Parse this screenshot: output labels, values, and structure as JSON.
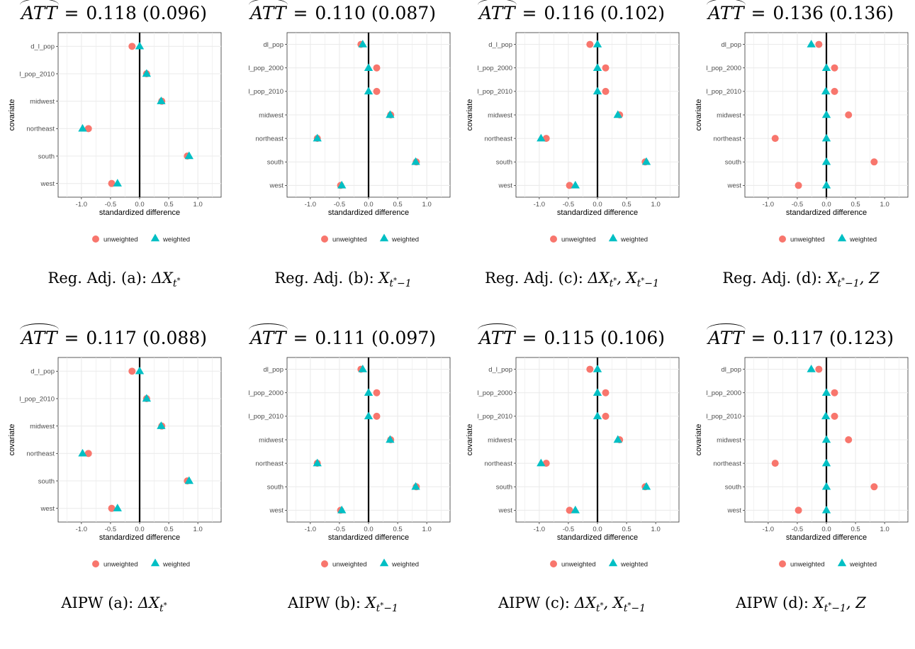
{
  "colors": {
    "unweighted": "#F8766D",
    "weighted": "#00BFC4",
    "grid": "#EBEBEB",
    "zero_line": "#000000"
  },
  "legend": {
    "unweighted": "unweighted",
    "weighted": "weighted"
  },
  "chart_data": [
    {
      "type": "scatter",
      "title_prefix": "ATT",
      "estimate": "0.118",
      "se": "(0.096)",
      "caption": {
        "text": "Reg. Adj. (a):",
        "math": "ΔX",
        "sub": "t",
        "sup": "*",
        "tail": ""
      },
      "xlabel": "standardized difference",
      "ylabel": "covariate",
      "xlim": [
        -1.4,
        1.4
      ],
      "xticks": [
        "-1.0",
        "-0.5",
        "0.0",
        "0.5",
        "1.0"
      ],
      "xtick_values": [
        -1.0,
        -0.5,
        0.0,
        0.5,
        1.0
      ],
      "covariates": [
        "d_l_pop",
        "l_pop_2010",
        "midwest",
        "northeast",
        "south",
        "west"
      ],
      "series": [
        {
          "name": "unweighted",
          "values": [
            -0.13,
            0.12,
            0.38,
            -0.88,
            0.82,
            -0.48
          ]
        },
        {
          "name": "weighted",
          "values": [
            0.0,
            0.12,
            0.37,
            -0.98,
            0.85,
            -0.38
          ]
        }
      ]
    },
    {
      "type": "scatter",
      "title_prefix": "ATT",
      "estimate": "0.110",
      "se": "(0.087)",
      "caption": {
        "text": "Reg. Adj. (b):",
        "math": "X",
        "sub": "t",
        "sup": "*",
        "tail": "−1"
      },
      "xlabel": "standardized difference",
      "ylabel": "",
      "xlim": [
        -1.4,
        1.4
      ],
      "xticks": [
        "-1.0",
        "-0.5",
        "0.0",
        "0.5",
        "1.0"
      ],
      "xtick_values": [
        -1.0,
        -0.5,
        0.0,
        0.5,
        1.0
      ],
      "covariates": [
        "dl_pop",
        "l_pop_2000",
        "l_pop_2010",
        "midwest",
        "northeast",
        "south",
        "west"
      ],
      "series": [
        {
          "name": "unweighted",
          "values": [
            -0.13,
            0.14,
            0.14,
            0.38,
            -0.88,
            0.82,
            -0.48
          ]
        },
        {
          "name": "weighted",
          "values": [
            -0.1,
            0.0,
            0.0,
            0.37,
            -0.88,
            0.81,
            -0.46
          ]
        }
      ]
    },
    {
      "type": "scatter",
      "title_prefix": "ATT",
      "estimate": "0.116",
      "se": "(0.102)",
      "caption": {
        "text": "Reg. Adj. (c):",
        "math": "ΔX",
        "sub": "t",
        "sup": "*",
        "tail": ", X",
        "sub2": "t",
        "sup2": "*",
        "tail2": "−1"
      },
      "xlabel": "standardized difference",
      "ylabel": "covariate",
      "xlim": [
        -1.4,
        1.4
      ],
      "xticks": [
        "-1.0",
        "-0.5",
        "0.0",
        "0.5",
        "1.0"
      ],
      "xtick_values": [
        -1.0,
        -0.5,
        0.0,
        0.5,
        1.0
      ],
      "covariates": [
        "d_l_pop",
        "l_pop_2000",
        "l_pop_2010",
        "midwest",
        "northeast",
        "south",
        "west"
      ],
      "series": [
        {
          "name": "unweighted",
          "values": [
            -0.13,
            0.14,
            0.14,
            0.38,
            -0.88,
            0.82,
            -0.48
          ]
        },
        {
          "name": "weighted",
          "values": [
            0.0,
            0.0,
            0.0,
            0.35,
            -0.97,
            0.84,
            -0.38
          ]
        }
      ]
    },
    {
      "type": "scatter",
      "title_prefix": "ATT",
      "estimate": "0.136",
      "se": "(0.136)",
      "caption": {
        "text": "Reg. Adj. (d):",
        "math": "X",
        "sub": "t",
        "sup": "*",
        "tail": "−1",
        "tail3": ", Z"
      },
      "xlabel": "standardized difference",
      "ylabel": "covariate",
      "xlim": [
        -1.4,
        1.4
      ],
      "xticks": [
        "-1.0",
        "-0.5",
        "0.0",
        "0.5",
        "1.0"
      ],
      "xtick_values": [
        -1.0,
        -0.5,
        0.0,
        0.5,
        1.0
      ],
      "covariates": [
        "dl_pop",
        "l_pop_2000",
        "l_pop_2010",
        "midwest",
        "northeast",
        "south",
        "west"
      ],
      "series": [
        {
          "name": "unweighted",
          "values": [
            -0.13,
            0.14,
            0.14,
            0.38,
            -0.88,
            0.82,
            -0.48
          ]
        },
        {
          "name": "weighted",
          "values": [
            -0.26,
            0.0,
            -0.01,
            0.0,
            0.0,
            0.0,
            0.0
          ]
        }
      ]
    },
    {
      "type": "scatter",
      "title_prefix": "ATT",
      "estimate": "0.117",
      "se": "(0.088)",
      "caption": {
        "text": "AIPW (a):",
        "math": "ΔX",
        "sub": "t",
        "sup": "*",
        "tail": ""
      },
      "xlabel": "standardized difference",
      "ylabel": "covariate",
      "xlim": [
        -1.4,
        1.4
      ],
      "xticks": [
        "-1.0",
        "-0.5",
        "0.0",
        "0.5",
        "1.0"
      ],
      "xtick_values": [
        -1.0,
        -0.5,
        0.0,
        0.5,
        1.0
      ],
      "covariates": [
        "d_l_pop",
        "l_pop_2010",
        "midwest",
        "northeast",
        "south",
        "west"
      ],
      "series": [
        {
          "name": "unweighted",
          "values": [
            -0.13,
            0.12,
            0.38,
            -0.88,
            0.82,
            -0.48
          ]
        },
        {
          "name": "weighted",
          "values": [
            0.0,
            0.12,
            0.37,
            -0.98,
            0.85,
            -0.38
          ]
        }
      ]
    },
    {
      "type": "scatter",
      "title_prefix": "ATT",
      "estimate": "0.111",
      "se": "(0.097)",
      "caption": {
        "text": "AIPW (b):",
        "math": "X",
        "sub": "t",
        "sup": "*",
        "tail": "−1"
      },
      "xlabel": "standardized difference",
      "ylabel": "",
      "xlim": [
        -1.4,
        1.4
      ],
      "xticks": [
        "-1.0",
        "-0.5",
        "0.0",
        "0.5",
        "1.0"
      ],
      "xtick_values": [
        -1.0,
        -0.5,
        0.0,
        0.5,
        1.0
      ],
      "covariates": [
        "dl_pop",
        "l_pop_2000",
        "l_pop_2010",
        "midwest",
        "northeast",
        "south",
        "west"
      ],
      "series": [
        {
          "name": "unweighted",
          "values": [
            -0.13,
            0.14,
            0.14,
            0.38,
            -0.88,
            0.82,
            -0.48
          ]
        },
        {
          "name": "weighted",
          "values": [
            -0.1,
            0.0,
            0.0,
            0.37,
            -0.88,
            0.81,
            -0.46
          ]
        }
      ]
    },
    {
      "type": "scatter",
      "title_prefix": "ATT",
      "estimate": "0.115",
      "se": "(0.106)",
      "caption": {
        "text": "AIPW (c):",
        "math": "ΔX",
        "sub": "t",
        "sup": "*",
        "tail": ", X",
        "sub2": "t",
        "sup2": "*",
        "tail2": "−1"
      },
      "xlabel": "standardized difference",
      "ylabel": "covariate",
      "xlim": [
        -1.4,
        1.4
      ],
      "xticks": [
        "-1.0",
        "-0.5",
        "0.0",
        "0.5",
        "1.0"
      ],
      "xtick_values": [
        -1.0,
        -0.5,
        0.0,
        0.5,
        1.0
      ],
      "covariates": [
        "d_l_pop",
        "l_pop_2000",
        "l_pop_2010",
        "midwest",
        "northeast",
        "south",
        "west"
      ],
      "series": [
        {
          "name": "unweighted",
          "values": [
            -0.13,
            0.14,
            0.14,
            0.38,
            -0.88,
            0.82,
            -0.48
          ]
        },
        {
          "name": "weighted",
          "values": [
            0.0,
            0.0,
            0.0,
            0.35,
            -0.97,
            0.84,
            -0.38
          ]
        }
      ]
    },
    {
      "type": "scatter",
      "title_prefix": "ATT",
      "estimate": "0.117",
      "se": "(0.123)",
      "caption": {
        "text": "AIPW (d):",
        "math": "X",
        "sub": "t",
        "sup": "*",
        "tail": "−1",
        "tail3": ", Z"
      },
      "xlabel": "standardized difference",
      "ylabel": "covariate",
      "xlim": [
        -1.4,
        1.4
      ],
      "xticks": [
        "-1.0",
        "-0.5",
        "0.0",
        "0.5",
        "1.0"
      ],
      "xtick_values": [
        -1.0,
        -0.5,
        0.0,
        0.5,
        1.0
      ],
      "covariates": [
        "dl_pop",
        "l_pop_2000",
        "l_pop_2010",
        "midwest",
        "northeast",
        "south",
        "west"
      ],
      "series": [
        {
          "name": "unweighted",
          "values": [
            -0.13,
            0.14,
            0.14,
            0.38,
            -0.88,
            0.82,
            -0.48
          ]
        },
        {
          "name": "weighted",
          "values": [
            -0.26,
            0.0,
            -0.01,
            0.0,
            0.0,
            0.0,
            0.0
          ]
        }
      ]
    }
  ]
}
